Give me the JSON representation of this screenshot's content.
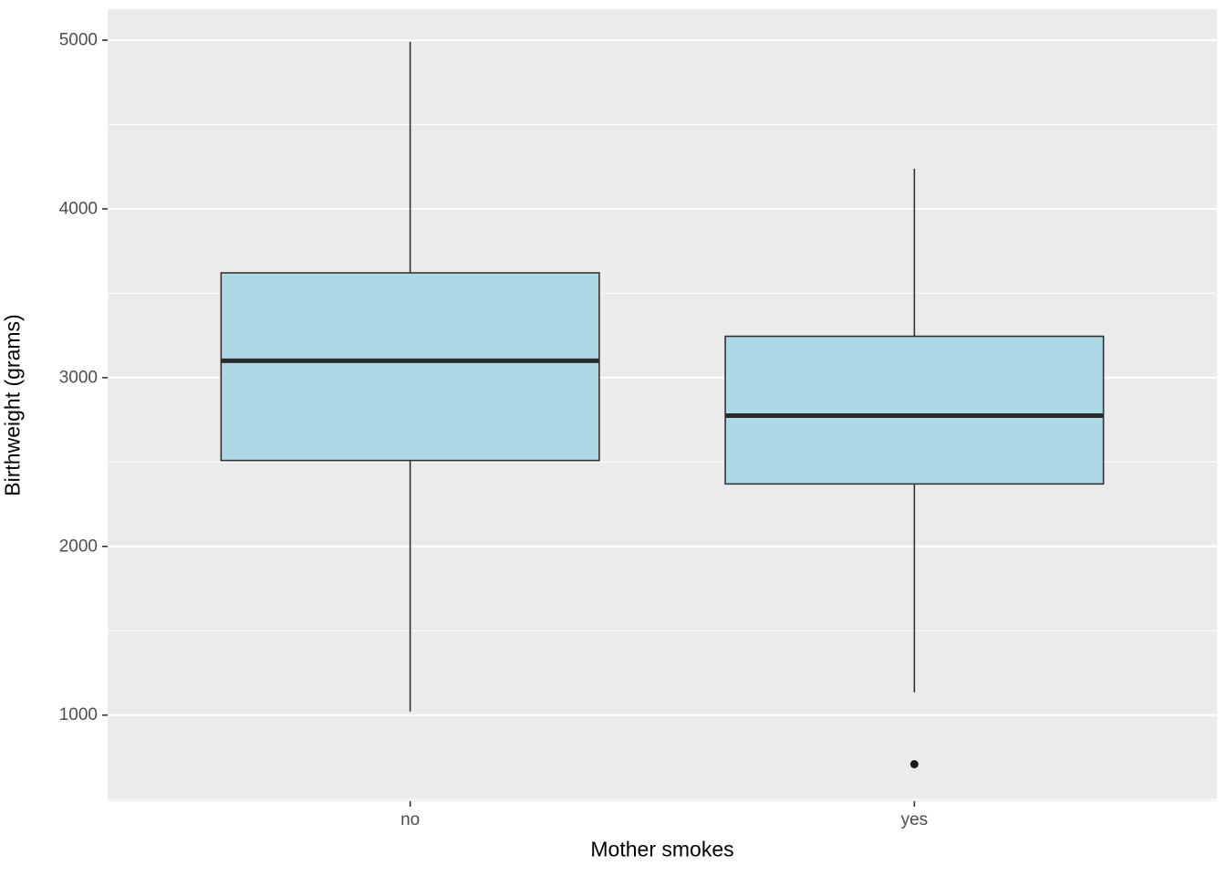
{
  "chart_data": {
    "type": "boxplot",
    "title": "",
    "xlabel": "Mother smokes",
    "ylabel": "Birthweight (grams)",
    "categories": [
      "no",
      "yes"
    ],
    "series": [
      {
        "category": "no",
        "whisker_low": 1021,
        "q1": 2509,
        "median": 3100,
        "q3": 3621,
        "whisker_high": 4990,
        "outliers": []
      },
      {
        "category": "yes",
        "whisker_low": 1135,
        "q1": 2370,
        "median": 2775,
        "q3": 3245,
        "whisker_high": 4238,
        "outliers": [
          709
        ]
      }
    ],
    "y_ticks": [
      1000,
      2000,
      3000,
      4000,
      5000
    ],
    "y_minor_ticks": [
      500,
      1500,
      2500,
      3500,
      4500
    ],
    "ylim": [
      490,
      5184
    ],
    "grid": true,
    "legend": false,
    "colors": {
      "box_fill": "#ADD8E6",
      "box_stroke": "#333333",
      "median_stroke": "#2B2B2B",
      "panel_background": "#EBEBEB",
      "grid_major": "#FFFFFF",
      "grid_minor": "#FFFFFF",
      "axis_text": "#4D4D4D",
      "axis_title": "#000000",
      "tick_mark": "#333333",
      "outlier": "#1A1A1A"
    }
  }
}
